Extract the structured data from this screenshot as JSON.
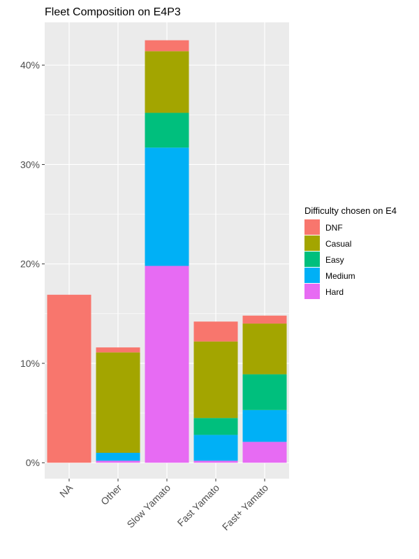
{
  "chart_data": {
    "type": "bar",
    "stacked": true,
    "title": "Fleet Composition on E4P3",
    "xlabel": "",
    "ylabel": "",
    "categories": [
      "NA",
      "Other",
      "Slow Yamato",
      "Fast Yamato",
      "Fast+ Yamato"
    ],
    "ylim": [
      -1.6,
      44.3
    ],
    "yticks": [
      0,
      10,
      20,
      30,
      40
    ],
    "ytick_labels": [
      "0%",
      "10%",
      "20%",
      "30%",
      "40%"
    ],
    "grid": true,
    "legend": {
      "title": "Difficulty chosen on E4",
      "position": "right"
    },
    "series": [
      {
        "name": "Hard",
        "color": "#E76BF3",
        "values": [
          0,
          0.2,
          19.8,
          0.2,
          2.1
        ]
      },
      {
        "name": "Medium",
        "color": "#00B0F6",
        "values": [
          0,
          0.8,
          11.9,
          2.6,
          3.2
        ]
      },
      {
        "name": "Easy",
        "color": "#00BF7D",
        "values": [
          0,
          0,
          3.5,
          1.7,
          3.6
        ]
      },
      {
        "name": "Casual",
        "color": "#A3A500",
        "values": [
          0,
          10.1,
          6.2,
          7.7,
          5.1
        ]
      },
      {
        "name": "DNF",
        "color": "#F8766D",
        "values": [
          16.9,
          0.5,
          1.1,
          2.0,
          0.8
        ]
      }
    ],
    "legend_order": [
      "DNF",
      "Casual",
      "Easy",
      "Medium",
      "Hard"
    ]
  }
}
